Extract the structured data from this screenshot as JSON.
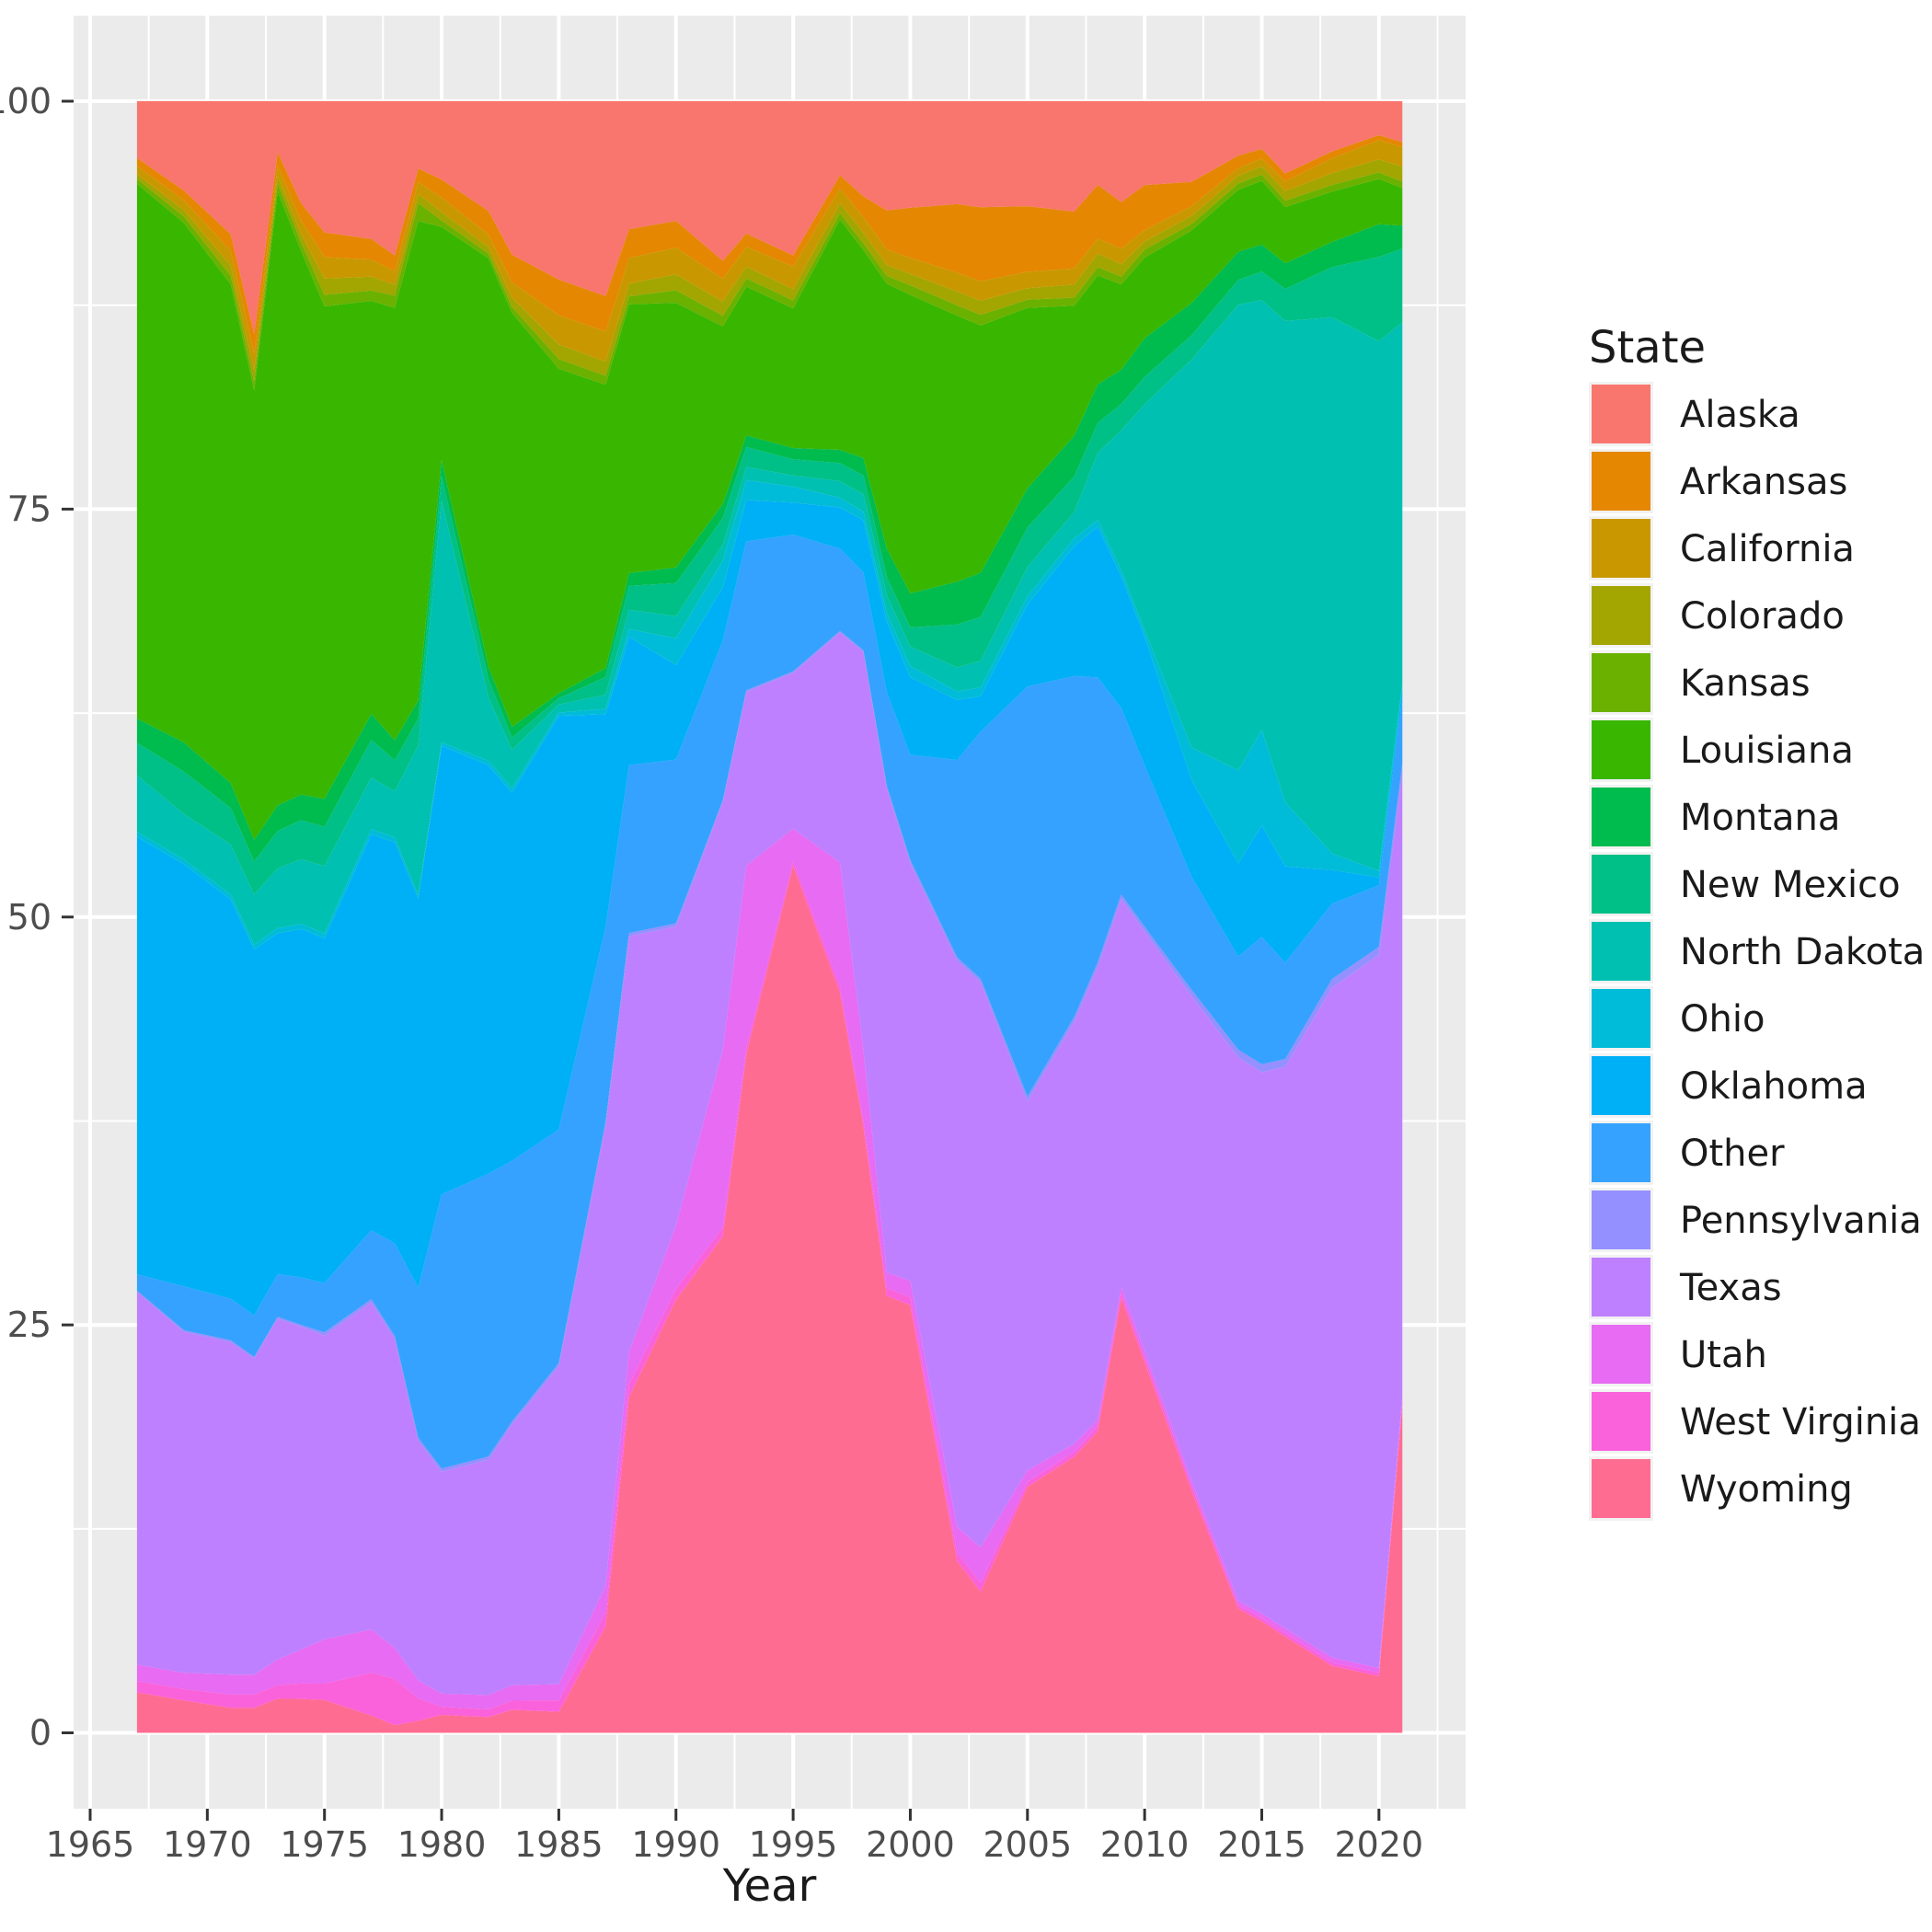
{
  "figure": {
    "background": "#FFFFFF",
    "panel_background": "#EBEBEB",
    "grid_color": "#FFFFFF",
    "tick_color": "#333333",
    "axis_text_color": "#4D4D4D",
    "axis_title_color": "#1A1A1A"
  },
  "axes": {
    "x_title": "Year",
    "x_ticks": [
      1965,
      1970,
      1975,
      1980,
      1985,
      1990,
      1995,
      2000,
      2005,
      2010,
      2015,
      2020
    ],
    "x_minor_ticks": [
      1967.5,
      1972.5,
      1977.5,
      1982.5,
      1987.5,
      1992.5,
      1997.5,
      2002.5,
      2007.5,
      2012.5,
      2017.5,
      2022.5
    ],
    "y_ticks": [
      0,
      25,
      50,
      75,
      100
    ],
    "y_minor_ticks": [
      12.5,
      37.5,
      62.5,
      87.5
    ]
  },
  "legend": {
    "title": "State"
  },
  "chart_data": {
    "type": "area",
    "stack": "fill-percent",
    "title": "",
    "xlabel": "Year",
    "ylabel": "",
    "x_range_padded": [
      1964.3,
      2023.7
    ],
    "y_range_padded": [
      -5,
      105
    ],
    "ylim_data": [
      0,
      100
    ],
    "grid": "on",
    "legend_position": "right",
    "years": [
      1967,
      1969,
      1971,
      1972,
      1973,
      1974,
      1975,
      1977,
      1978,
      1979,
      1980,
      1982,
      1983,
      1985,
      1987,
      1988,
      1990,
      1992,
      1993,
      1995,
      1997,
      1998,
      1999,
      2000,
      2002,
      2003,
      2005,
      2007,
      2008,
      2009,
      2010,
      2012,
      2014,
      2015,
      2016,
      2018,
      2020,
      2021
    ],
    "series": [
      {
        "name": "Alaska",
        "color": "#F8766D",
        "values": [
          3.5,
          5.5,
          8,
          14,
          3,
          6,
          8,
          8,
          10,
          4.5,
          4.8,
          7,
          10,
          11,
          11,
          8,
          7.6,
          9,
          8,
          9.6,
          4.5,
          5.5,
          7,
          6.6,
          6,
          6,
          6.4,
          6.8,
          5,
          6.5,
          5.2,
          5,
          3.5,
          3,
          4.5,
          3,
          2.1,
          2.5
        ]
      },
      {
        "name": "Arkansas",
        "color": "#E58700",
        "values": [
          0.5,
          0.6,
          1,
          1.2,
          0.8,
          1,
          1.5,
          1.2,
          1,
          0.9,
          1.1,
          1.5,
          1.8,
          2.2,
          2,
          1.8,
          1.7,
          1,
          0.8,
          0.7,
          0.8,
          1.2,
          2.5,
          3.1,
          4,
          4.2,
          4,
          3.5,
          3.2,
          3,
          2.8,
          1.5,
          0.8,
          0.6,
          0.5,
          0.4,
          0.3,
          0.3
        ]
      },
      {
        "name": "California",
        "color": "#C99800",
        "values": [
          0.5,
          0.6,
          0.9,
          1,
          0.6,
          0.8,
          1.3,
          1,
          0.9,
          0.8,
          0.9,
          0.8,
          1,
          1.8,
          1.7,
          1.6,
          1.7,
          1.3,
          1.2,
          1.4,
          0.9,
          0.9,
          1,
          1,
          1.1,
          1.1,
          1,
          1,
          0.9,
          1,
          0.7,
          0.6,
          0.5,
          0.5,
          0.6,
          0.9,
          1.2,
          1.2
        ]
      },
      {
        "name": "Colorado",
        "color": "#A3A500",
        "values": [
          0.3,
          0.4,
          0.6,
          0.7,
          0.4,
          0.5,
          1,
          0.8,
          0.7,
          0.6,
          0.5,
          0.4,
          0.6,
          0.9,
          0.8,
          0.8,
          1,
          0.8,
          0.7,
          0.7,
          0.6,
          0.6,
          0.7,
          0.7,
          0.8,
          0.8,
          0.7,
          0.8,
          0.8,
          0.8,
          0.5,
          0.5,
          0.5,
          0.5,
          0.6,
          0.7,
          0.8,
          0.9
        ]
      },
      {
        "name": "Kansas",
        "color": "#6BB100",
        "values": [
          0.3,
          0.4,
          0.5,
          0.5,
          0.5,
          0.5,
          0.7,
          0.6,
          0.8,
          1.2,
          0.4,
          0.3,
          0.4,
          0.6,
          0.5,
          0.5,
          0.8,
          0.6,
          0.5,
          0.5,
          0.4,
          0.4,
          0.5,
          0.6,
          0.6,
          0.6,
          0.5,
          0.5,
          0.5,
          0.5,
          0.5,
          0.4,
          0.4,
          0.4,
          0.4,
          0.4,
          0.4,
          0.4
        ]
      },
      {
        "name": "Louisiana",
        "color": "#39B600",
        "values": [
          33,
          32,
          30,
          27,
          36,
          32,
          30,
          24,
          28,
          32,
          14.3,
          26,
          27,
          20,
          16,
          16.8,
          16.8,
          10,
          9,
          8.7,
          14,
          12,
          17,
          18.5,
          15.5,
          14,
          11,
          8,
          6.5,
          5.5,
          5,
          4.5,
          4,
          4,
          3.5,
          3,
          2.8,
          2.3
        ]
      },
      {
        "name": "Montana",
        "color": "#00BB4E",
        "values": [
          1.5,
          1.8,
          1.5,
          1.3,
          1.5,
          1.5,
          1.7,
          1.5,
          1.3,
          1.2,
          1,
          0.8,
          0.7,
          0.3,
          0.5,
          0.8,
          1,
          0.8,
          0.7,
          0.7,
          0.8,
          1,
          1.8,
          2.1,
          2.5,
          2.5,
          2.4,
          2.5,
          2.3,
          2.2,
          2.4,
          2,
          1.8,
          1.7,
          1.6,
          1.5,
          2,
          1.4
        ]
      },
      {
        "name": "New Mexico",
        "color": "#00C087",
        "values": [
          2,
          2.6,
          2.2,
          2,
          2.2,
          2.3,
          2.4,
          2.2,
          2,
          1.8,
          1.5,
          1.2,
          0.8,
          0.4,
          1,
          1.5,
          2.1,
          1.5,
          1.2,
          1,
          1.1,
          1.1,
          1.2,
          1.2,
          2.5,
          2.5,
          2.4,
          2.2,
          1.8,
          1.7,
          1.7,
          1.5,
          1.6,
          1.8,
          2,
          3,
          5.2,
          4.5
        ]
      },
      {
        "name": "North Dakota",
        "color": "#00C0B2",
        "values": [
          3.5,
          2.8,
          3,
          3,
          3.5,
          3.8,
          4.1,
          3,
          3,
          10,
          14.8,
          4,
          2.5,
          0.5,
          0.8,
          1.2,
          1.4,
          0.9,
          0.8,
          0.7,
          1,
          1,
          1.1,
          1.2,
          1.4,
          1.5,
          1.8,
          1.6,
          4,
          9,
          14,
          24,
          30,
          27,
          30,
          32,
          32.7,
          22
        ]
      },
      {
        "name": "Ohio",
        "color": "#00BCD8",
        "values": [
          0.3,
          0.3,
          0.3,
          0.3,
          0.3,
          0.3,
          0.3,
          0.3,
          0.3,
          0.2,
          0.2,
          0.3,
          0.3,
          0.2,
          0.3,
          0.5,
          1.7,
          1.5,
          1.2,
          1,
          0.6,
          0.5,
          0.6,
          0.7,
          0.5,
          0.5,
          0.5,
          0.5,
          0.4,
          0.4,
          0.4,
          2,
          6,
          6,
          4,
          1,
          0.4,
          0.3
        ]
      },
      {
        "name": "Oklahoma",
        "color": "#00B0F6",
        "values": [
          27,
          26,
          24,
          22,
          20,
          20.5,
          21,
          23,
          26,
          26,
          27.5,
          26,
          24,
          25.5,
          12,
          8,
          6,
          3,
          2.5,
          2,
          2.5,
          3,
          4.5,
          4.8,
          3.5,
          2,
          5,
          8,
          9,
          8.5,
          8,
          6,
          6,
          7,
          6,
          2,
          0.5,
          0.6
        ]
      },
      {
        "name": "Other",
        "color": "#35A2FF",
        "values": [
          1,
          2.7,
          2.5,
          2.5,
          2.5,
          2.8,
          3,
          4,
          6,
          10,
          16.8,
          18,
          17,
          14.4,
          11,
          10.5,
          10.4,
          9,
          9,
          8.5,
          5,
          4.5,
          6,
          6.5,
          11.5,
          14,
          25,
          21,
          17,
          12,
          10,
          7,
          6,
          8,
          6,
          4.5,
          3.8,
          4
        ]
      },
      {
        "name": "Pennsylvania",
        "color": "#9590FF",
        "values": [
          0.1,
          0.1,
          0.1,
          0.1,
          0.1,
          0.1,
          0.2,
          0.2,
          0.2,
          0.2,
          0.2,
          0.2,
          0.2,
          0.2,
          0.2,
          0.2,
          0.2,
          0.1,
          0.1,
          0.1,
          0.1,
          0.1,
          0.2,
          0.2,
          0.2,
          0.2,
          0.3,
          0.3,
          0.3,
          0.3,
          0.3,
          0.4,
          0.5,
          0.5,
          0.5,
          0.5,
          0.5,
          0.6
        ]
      },
      {
        "name": "Texas",
        "color": "#BF80FF",
        "values": [
          23,
          21,
          20,
          19,
          20,
          19,
          18.5,
          19,
          20,
          16,
          13.6,
          15,
          17,
          19.6,
          26,
          26,
          19,
          14,
          10.5,
          9.7,
          14,
          23,
          31,
          25.9,
          33,
          32,
          22.5,
          26,
          27,
          25,
          26,
          30,
          35,
          34,
          35,
          40,
          44,
          38
        ]
      },
      {
        "name": "Utah",
        "color": "#E76BF3",
        "values": [
          1,
          1,
          1.2,
          1.2,
          1.5,
          2,
          2.7,
          2.5,
          2,
          1.2,
          0.8,
          0.9,
          1,
          1,
          1.5,
          2,
          4,
          10,
          11,
          2,
          7.5,
          4,
          1,
          1,
          1.5,
          2,
          0.7,
          0.5,
          0.4,
          0.4,
          0.4,
          0.3,
          0.3,
          0.3,
          0.3,
          0.3,
          0.3,
          0.4
        ]
      },
      {
        "name": "West Virginia",
        "color": "#FA62DB",
        "values": [
          0.7,
          0.7,
          0.8,
          0.8,
          0.8,
          0.9,
          1,
          2.5,
          3,
          1.5,
          0.5,
          0.5,
          0.6,
          0.7,
          0.8,
          0.8,
          0.7,
          0.5,
          0.4,
          0.3,
          0.4,
          0.4,
          0.5,
          0.5,
          0.5,
          0.5,
          0.3,
          0.3,
          0.3,
          0.3,
          0.3,
          0.3,
          0.2,
          0.2,
          0.2,
          0.2,
          0.2,
          0.2
        ]
      },
      {
        "name": "Wyoming",
        "color": "#FF6C91",
        "values": [
          2.5,
          2,
          1.5,
          1.5,
          2,
          2,
          2,
          1,
          0.5,
          0.8,
          1.1,
          1,
          1.5,
          1.3,
          6,
          21,
          27.5,
          28,
          41,
          54,
          45,
          35,
          28,
          26.5,
          10,
          8,
          15,
          17,
          18,
          28,
          23,
          15,
          8,
          7,
          6,
          4,
          3.5,
          20
        ]
      }
    ]
  }
}
